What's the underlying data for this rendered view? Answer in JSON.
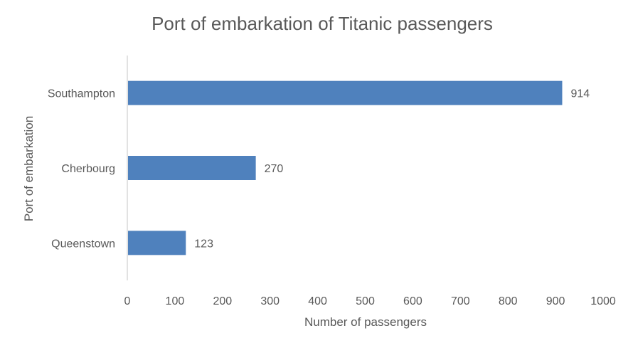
{
  "chart_data": {
    "type": "bar",
    "orientation": "horizontal",
    "title": "Port of embarkation of Titanic passengers",
    "xlabel": "Number of passengers",
    "ylabel": "Port of embarkation",
    "categories": [
      "Southampton",
      "Cherbourg",
      "Queenstown"
    ],
    "values": [
      914,
      270,
      123
    ],
    "data_labels": [
      "914",
      "270",
      "123"
    ],
    "xlim": [
      0,
      1000
    ],
    "xticks": [
      0,
      100,
      200,
      300,
      400,
      500,
      600,
      700,
      800,
      900,
      1000
    ],
    "xtick_labels": [
      "0",
      "100",
      "200",
      "300",
      "400",
      "500",
      "600",
      "700",
      "800",
      "900",
      "1000"
    ],
    "grid": false,
    "legend": "none",
    "bar_color": "#4F81BD",
    "axis_color": "#D9D9D9",
    "text_color": "#595959"
  }
}
